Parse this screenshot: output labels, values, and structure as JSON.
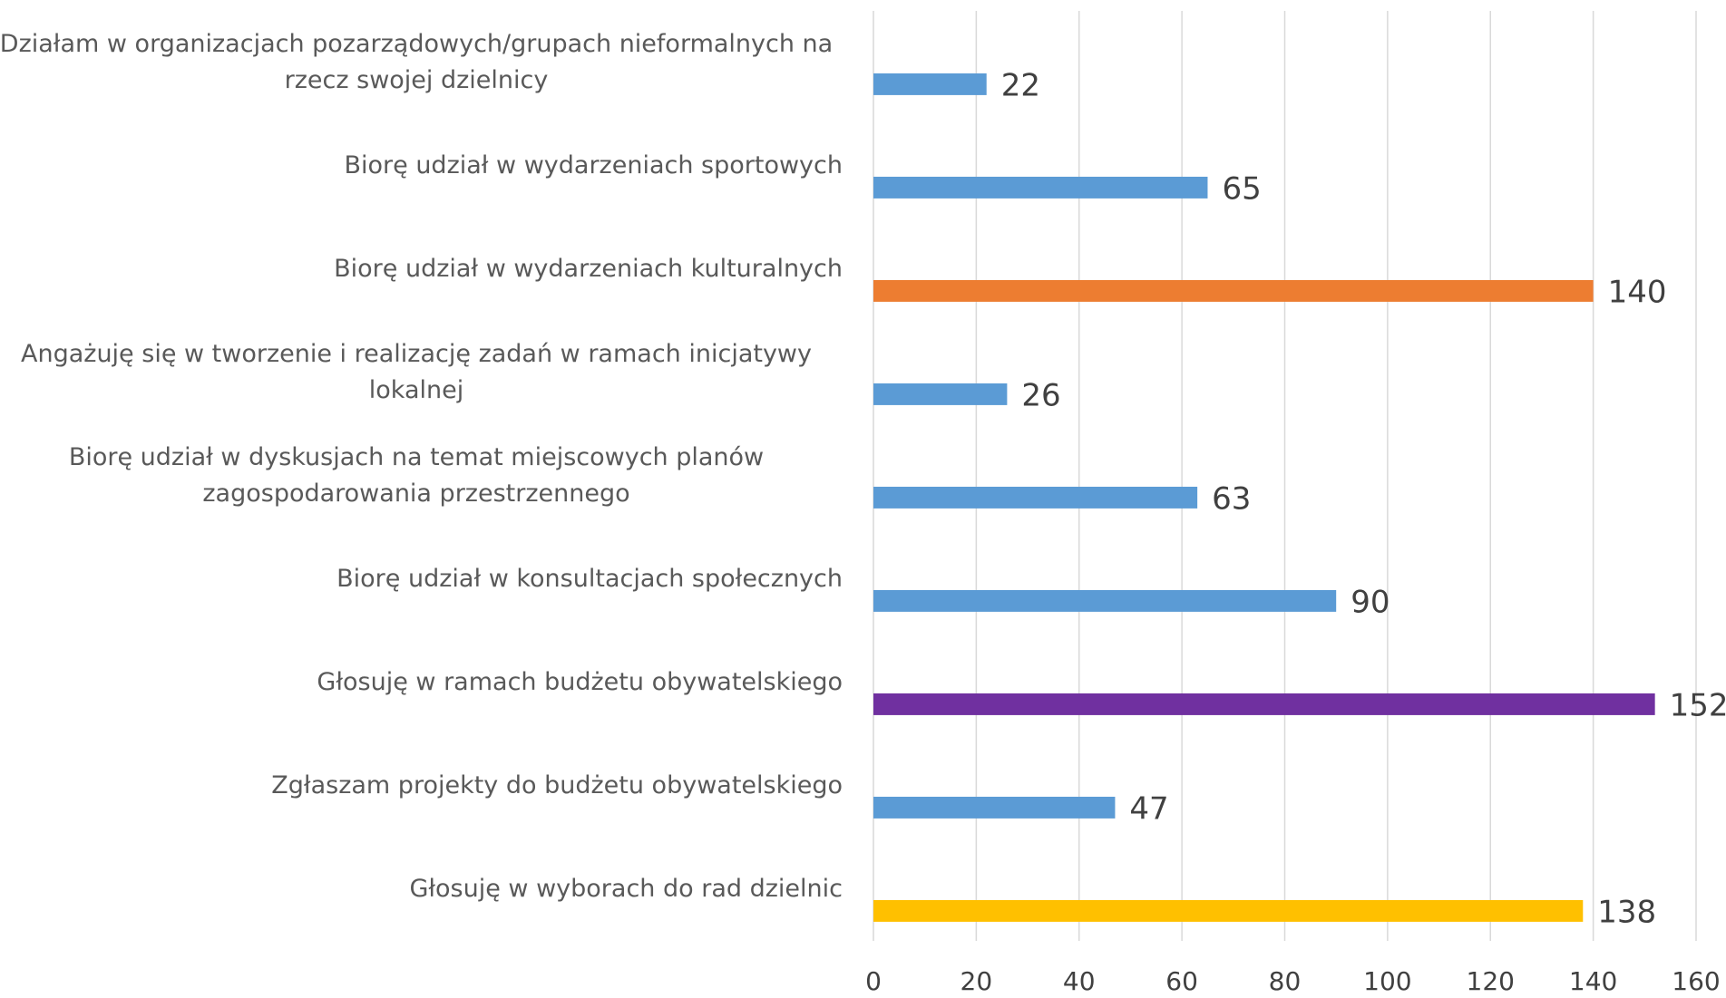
{
  "chart_data": {
    "type": "bar",
    "orientation": "horizontal",
    "categories": [
      "Działam w organizacjach pozarządowych/grupach nieformalnych na rzecz swojej dzielnicy",
      "Biorę udział w wydarzeniach sportowych",
      "Biorę udział w wydarzeniach kulturalnych",
      "Angażuję się w tworzenie i realizację zadań w ramach inicjatywy lokalnej",
      "Biorę udział w dyskusjach na temat miejscowych planów zagospodarowania przestrzennego",
      "Biorę udział w konsultacjach społecznych",
      "Głosuję w ramach budżetu obywatelskiego",
      "Zgłaszam projekty do budżetu obywatelskiego",
      "Głosuję w wyborach do rad dzielnic"
    ],
    "values": [
      22,
      65,
      140,
      26,
      63,
      90,
      152,
      47,
      138
    ],
    "colors": [
      "#5b9bd5",
      "#5b9bd5",
      "#ed7d31",
      "#5b9bd5",
      "#5b9bd5",
      "#5b9bd5",
      "#7030a0",
      "#5b9bd5",
      "#ffc000"
    ],
    "xlim": [
      0,
      160
    ],
    "xticks": [
      0,
      20,
      40,
      60,
      80,
      100,
      120,
      140,
      160
    ],
    "grid": true
  }
}
